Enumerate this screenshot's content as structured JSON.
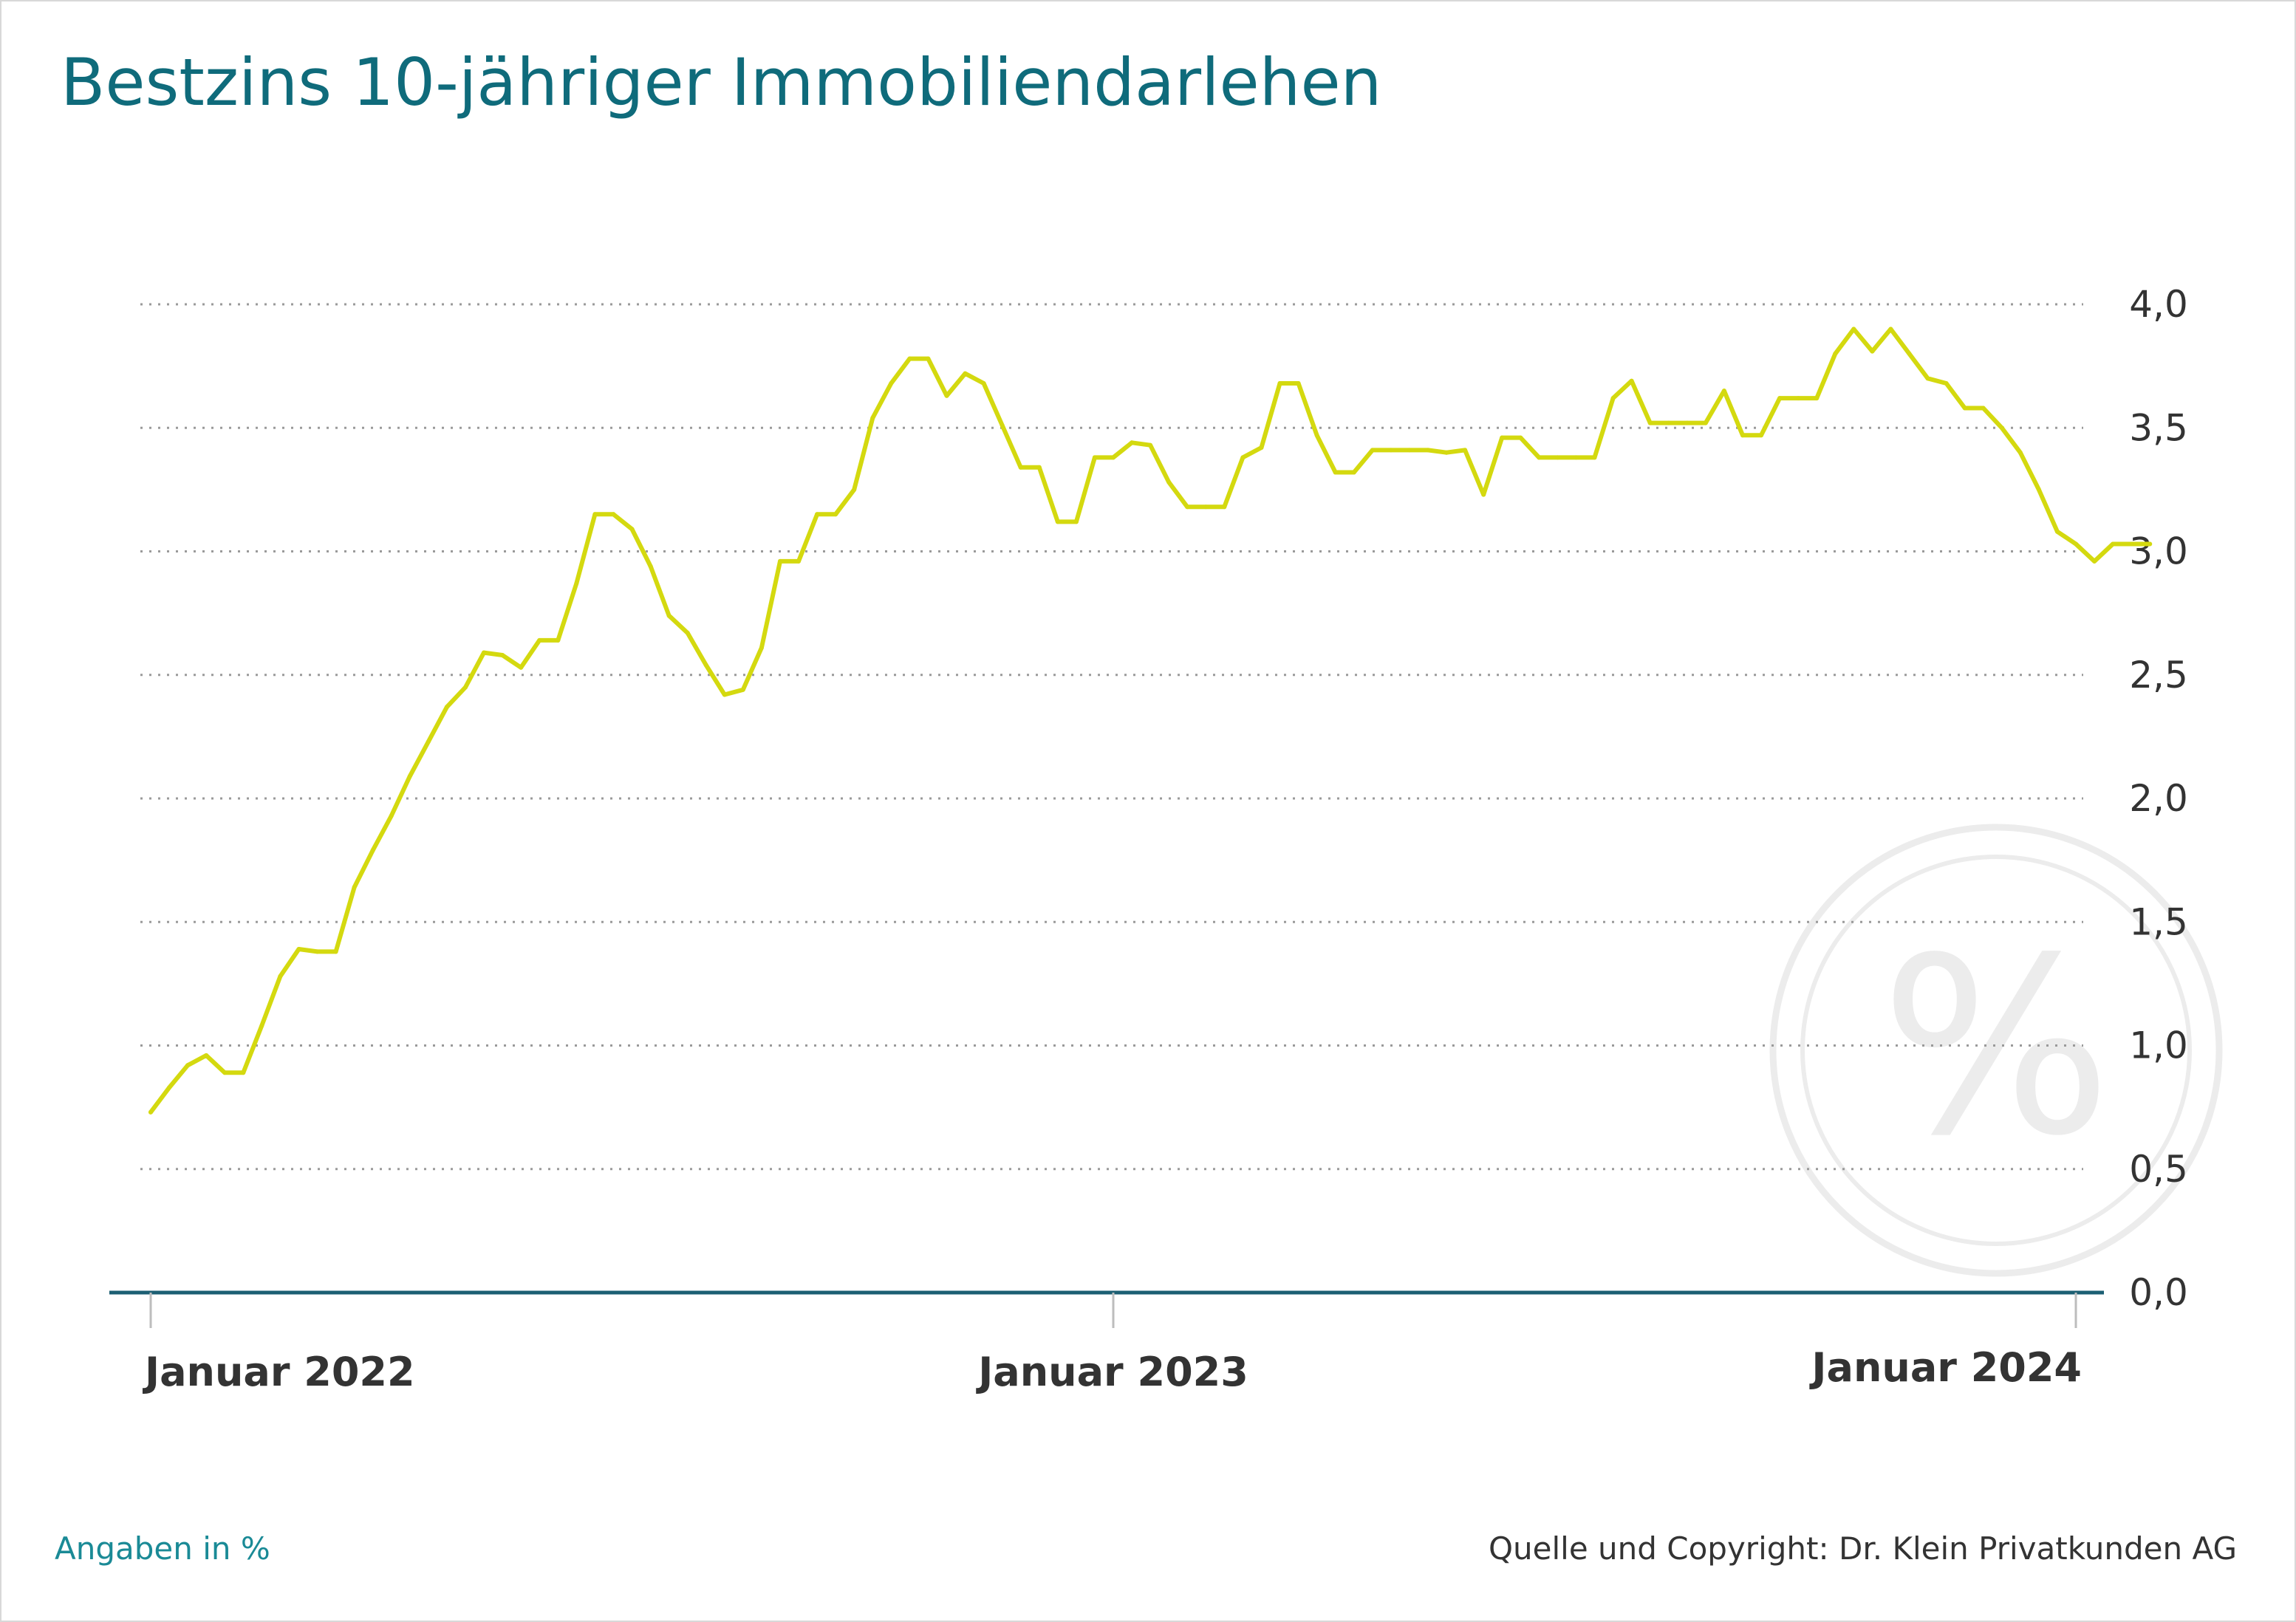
{
  "title": "Bestzins 10-jähriger Immobiliendarlehen",
  "footer": {
    "left_note": "Angaben in %",
    "right_note": "Quelle und Copyright: Dr. Klein Privatkunden AG"
  },
  "watermark": {
    "symbol": "%",
    "icon": "percent-icon"
  },
  "colors": {
    "title": "#0f6b7b",
    "line": "#d4d90f",
    "axis": "#1c5f73",
    "grid": "#9a9a9a",
    "note_left": "#1a8a96",
    "watermark": "#ececec"
  },
  "chart_data": {
    "type": "line",
    "title": "Bestzins 10-jähriger Immobiliendarlehen",
    "xlabel": "",
    "ylabel": "",
    "ylim": [
      0,
      4
    ],
    "yticks": [
      0,
      0.5,
      1,
      1.5,
      2,
      2.5,
      3,
      3.5,
      4
    ],
    "ytick_labels": [
      "0,0",
      "0,5",
      "1,0",
      "1,5",
      "2,0",
      "2,5",
      "3,0",
      "3,5",
      "4,0"
    ],
    "xticks": [
      {
        "x": 0,
        "label": "Januar 2022"
      },
      {
        "x": 52,
        "label": "Januar 2023"
      },
      {
        "x": 104,
        "label": "Januar 2024"
      }
    ],
    "x_unit": "weeks since Januar 2022",
    "grid": true,
    "y_axis_side": "right",
    "series": [
      {
        "name": "",
        "color": "#d4d90f",
        "points": [
          [
            0,
            0.73
          ],
          [
            1,
            0.83
          ],
          [
            2,
            0.92
          ],
          [
            3,
            0.96
          ],
          [
            4,
            0.89
          ],
          [
            5,
            0.89
          ],
          [
            6,
            1.08
          ],
          [
            7,
            1.28
          ],
          [
            8,
            1.39
          ],
          [
            9,
            1.38
          ],
          [
            10,
            1.38
          ],
          [
            11,
            1.64
          ],
          [
            12,
            1.79
          ],
          [
            13,
            1.93
          ],
          [
            14,
            2.09
          ],
          [
            15,
            2.23
          ],
          [
            16,
            2.37
          ],
          [
            17,
            2.45
          ],
          [
            18,
            2.59
          ],
          [
            19,
            2.58
          ],
          [
            20,
            2.53
          ],
          [
            21,
            2.64
          ],
          [
            22,
            2.64
          ],
          [
            23,
            2.87
          ],
          [
            24,
            3.15
          ],
          [
            25,
            3.15
          ],
          [
            26,
            3.09
          ],
          [
            27,
            2.94
          ],
          [
            28,
            2.74
          ],
          [
            29,
            2.67
          ],
          [
            30,
            2.54
          ],
          [
            31,
            2.42
          ],
          [
            32,
            2.44
          ],
          [
            33,
            2.61
          ],
          [
            34,
            2.96
          ],
          [
            35,
            2.96
          ],
          [
            36,
            3.15
          ],
          [
            37,
            3.15
          ],
          [
            38,
            3.25
          ],
          [
            39,
            3.54
          ],
          [
            40,
            3.68
          ],
          [
            41,
            3.78
          ],
          [
            42,
            3.78
          ],
          [
            43,
            3.63
          ],
          [
            44,
            3.72
          ],
          [
            45,
            3.68
          ],
          [
            46,
            3.51
          ],
          [
            47,
            3.34
          ],
          [
            48,
            3.34
          ],
          [
            49,
            3.12
          ],
          [
            50,
            3.12
          ],
          [
            51,
            3.38
          ],
          [
            52,
            3.38
          ],
          [
            53,
            3.44
          ],
          [
            54,
            3.43
          ],
          [
            55,
            3.28
          ],
          [
            56,
            3.18
          ],
          [
            57,
            3.18
          ],
          [
            58,
            3.18
          ],
          [
            59,
            3.38
          ],
          [
            60,
            3.42
          ],
          [
            61,
            3.68
          ],
          [
            62,
            3.68
          ],
          [
            63,
            3.47
          ],
          [
            64,
            3.32
          ],
          [
            65,
            3.32
          ],
          [
            66,
            3.41
          ],
          [
            67,
            3.41
          ],
          [
            68,
            3.41
          ],
          [
            69,
            3.41
          ],
          [
            70,
            3.4
          ],
          [
            71,
            3.41
          ],
          [
            72,
            3.23
          ],
          [
            73,
            3.46
          ],
          [
            74,
            3.46
          ],
          [
            75,
            3.38
          ],
          [
            76,
            3.38
          ],
          [
            77,
            3.38
          ],
          [
            78,
            3.38
          ],
          [
            79,
            3.62
          ],
          [
            80,
            3.69
          ],
          [
            81,
            3.52
          ],
          [
            82,
            3.52
          ],
          [
            83,
            3.52
          ],
          [
            84,
            3.52
          ],
          [
            85,
            3.65
          ],
          [
            86,
            3.47
          ],
          [
            87,
            3.47
          ],
          [
            88,
            3.62
          ],
          [
            89,
            3.62
          ],
          [
            90,
            3.62
          ],
          [
            91,
            3.8
          ],
          [
            92,
            3.9
          ],
          [
            93,
            3.81
          ],
          [
            94,
            3.9
          ],
          [
            95,
            3.8
          ],
          [
            96,
            3.7
          ],
          [
            97,
            3.68
          ],
          [
            98,
            3.58
          ],
          [
            99,
            3.58
          ],
          [
            100,
            3.5
          ],
          [
            101,
            3.4
          ],
          [
            102,
            3.25
          ],
          [
            103,
            3.08
          ],
          [
            104,
            3.03
          ],
          [
            105,
            2.96
          ],
          [
            106,
            3.03
          ],
          [
            107,
            3.03
          ],
          [
            108,
            3.03
          ]
        ]
      }
    ]
  }
}
